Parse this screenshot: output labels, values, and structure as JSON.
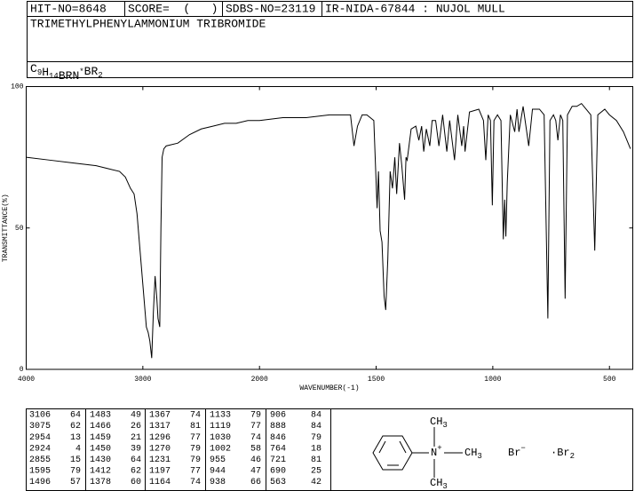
{
  "header": {
    "fields": [
      "HIT-NO=8648",
      "SCORE=  (   )",
      "SDBS-NO=23119",
      "IR-NIDA-67844 : NUJOL MULL"
    ],
    "name": "TRIMETHYLPHENYLAMMONIUM TRIBROMIDE",
    "formula": [
      {
        "main": "C",
        "sub": "9"
      },
      {
        "main": "H",
        "sub": "14"
      },
      {
        "main": "BRN",
        "sup": "*"
      },
      {
        "main": "BR",
        "sub": "2"
      }
    ]
  },
  "chart_data": {
    "type": "line",
    "xlabel": "WAVENUMBER(-1)",
    "ylabel": "TRANSMITTANCE(%)",
    "xlim": [
      4000,
      400
    ],
    "xticks": [
      4000,
      3000,
      2000,
      1500,
      1000,
      500
    ],
    "ylim": [
      0,
      100
    ],
    "yticks": [
      0,
      50,
      100
    ],
    "color": "#000000",
    "x": [
      4000,
      3800,
      3600,
      3400,
      3300,
      3200,
      3150,
      3106,
      3090,
      3075,
      3050,
      3020,
      3000,
      2970,
      2954,
      2940,
      2924,
      2910,
      2895,
      2880,
      2870,
      2855,
      2845,
      2835,
      2820,
      2800,
      2700,
      2600,
      2500,
      2400,
      2300,
      2200,
      2100,
      2000,
      1900,
      1800,
      1700,
      1650,
      1610,
      1595,
      1580,
      1560,
      1540,
      1510,
      1496,
      1490,
      1483,
      1475,
      1466,
      1459,
      1450,
      1440,
      1430,
      1420,
      1412,
      1400,
      1390,
      1378,
      1372,
      1367,
      1350,
      1330,
      1317,
      1305,
      1296,
      1285,
      1270,
      1260,
      1245,
      1231,
      1215,
      1197,
      1185,
      1164,
      1150,
      1133,
      1125,
      1119,
      1100,
      1060,
      1040,
      1030,
      1020,
      1010,
      1002,
      995,
      980,
      965,
      955,
      949,
      944,
      938,
      925,
      906,
      896,
      888,
      870,
      846,
      830,
      800,
      780,
      764,
      755,
      740,
      730,
      721,
      710,
      700,
      690,
      680,
      660,
      640,
      620,
      600,
      580,
      563,
      550,
      520,
      500,
      470,
      440,
      410
    ],
    "y": [
      75,
      74,
      73,
      72,
      71,
      70,
      68,
      64,
      63,
      62,
      55,
      40,
      30,
      15,
      13,
      10,
      4,
      20,
      33,
      25,
      18,
      15,
      50,
      75,
      78,
      79,
      80,
      83,
      85,
      86,
      87,
      87,
      88,
      88,
      89,
      89,
      90,
      90,
      90,
      79,
      86,
      90,
      90,
      88,
      57,
      70,
      49,
      45,
      26,
      21,
      39,
      70,
      64,
      75,
      62,
      80,
      72,
      60,
      75,
      74,
      85,
      86,
      81,
      86,
      77,
      85,
      79,
      88,
      88,
      79,
      90,
      77,
      88,
      74,
      90,
      79,
      86,
      77,
      91,
      92,
      88,
      74,
      90,
      88,
      58,
      88,
      90,
      88,
      46,
      60,
      47,
      66,
      90,
      84,
      92,
      84,
      93,
      79,
      92,
      92,
      90,
      18,
      88,
      90,
      88,
      81,
      90,
      88,
      25,
      90,
      93,
      93,
      94,
      92,
      90,
      42,
      90,
      92,
      90,
      88,
      84,
      78
    ]
  },
  "peak_table": {
    "columns": [
      [
        [
          3106,
          64
        ],
        [
          3075,
          62
        ],
        [
          2954,
          13
        ],
        [
          2924,
          4
        ],
        [
          2855,
          15
        ],
        [
          1595,
          79
        ],
        [
          1496,
          57
        ]
      ],
      [
        [
          1483,
          49
        ],
        [
          1466,
          26
        ],
        [
          1459,
          21
        ],
        [
          1450,
          39
        ],
        [
          1430,
          64
        ],
        [
          1412,
          62
        ],
        [
          1378,
          60
        ]
      ],
      [
        [
          1367,
          74
        ],
        [
          1317,
          81
        ],
        [
          1296,
          77
        ],
        [
          1270,
          79
        ],
        [
          1231,
          79
        ],
        [
          1197,
          77
        ],
        [
          1164,
          74
        ]
      ],
      [
        [
          1133,
          79
        ],
        [
          1119,
          77
        ],
        [
          1030,
          74
        ],
        [
          1002,
          58
        ],
        [
          955,
          46
        ],
        [
          944,
          47
        ],
        [
          938,
          66
        ]
      ],
      [
        [
          906,
          84
        ],
        [
          888,
          84
        ],
        [
          846,
          79
        ],
        [
          764,
          18
        ],
        [
          721,
          81
        ],
        [
          690,
          25
        ],
        [
          563,
          42
        ]
      ]
    ]
  },
  "structure": {
    "labels": [
      {
        "main": "CH",
        "sub": "3"
      },
      {
        "main": "N",
        "sup": "+"
      },
      {
        "main": "CH",
        "sub": "3"
      },
      {
        "main": "CH",
        "sub": "3"
      },
      {
        "main": "Br",
        "sup": "−"
      },
      {
        "main": "·Br",
        "sub": "2"
      }
    ]
  }
}
